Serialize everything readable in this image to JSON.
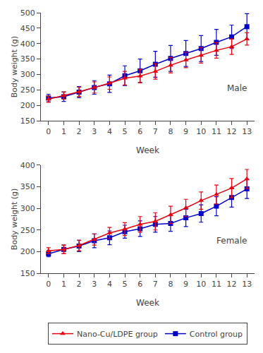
{
  "chart_data": [
    {
      "type": "line",
      "annotation": "Male",
      "xlabel": "Week",
      "ylabel": "Body weight (g)",
      "x": [
        0,
        1,
        2,
        3,
        4,
        5,
        6,
        7,
        8,
        9,
        10,
        11,
        12,
        13
      ],
      "xlim": [
        -0.5,
        13.5
      ],
      "xticks": [
        0,
        1,
        2,
        3,
        4,
        5,
        6,
        7,
        8,
        9,
        10,
        11,
        12,
        13
      ],
      "ylim": [
        150,
        500
      ],
      "yticks": [
        150,
        200,
        250,
        300,
        350,
        400,
        450,
        500
      ],
      "grid": false,
      "legend": "bottom",
      "series": [
        {
          "name": "Control group",
          "color": "#0000cc",
          "marker": "square",
          "line_style": "solid",
          "values": [
            224,
            228,
            243,
            258,
            270,
            296,
            312,
            333,
            352,
            368,
            384,
            404,
            422,
            455
          ],
          "errors": [
            12,
            15,
            18,
            22,
            28,
            32,
            38,
            42,
            42,
            42,
            42,
            42,
            38,
            42
          ]
        },
        {
          "name": "Nano-Cu/LDPE group",
          "color": "#e8000d",
          "marker": "triangle-up",
          "line_style": "solid",
          "values": [
            220,
            232,
            244,
            258,
            272,
            288,
            295,
            310,
            330,
            347,
            362,
            378,
            390,
            415
          ],
          "errors": [
            10,
            12,
            15,
            18,
            20,
            22,
            22,
            25,
            25,
            25,
            25,
            25,
            25,
            20
          ]
        }
      ]
    },
    {
      "type": "line",
      "annotation": "Female",
      "xlabel": "Week",
      "ylabel": "Body weight (g)",
      "x": [
        0,
        1,
        2,
        3,
        4,
        5,
        6,
        7,
        8,
        9,
        10,
        11,
        12,
        13
      ],
      "xlim": [
        -0.5,
        13.5
      ],
      "xticks": [
        0,
        1,
        2,
        3,
        4,
        5,
        6,
        7,
        8,
        9,
        10,
        11,
        12,
        13
      ],
      "ylim": [
        150,
        400
      ],
      "yticks": [
        150,
        200,
        250,
        300,
        350,
        400
      ],
      "grid": false,
      "legend": "bottom",
      "series": [
        {
          "name": "Control group",
          "color": "#0000cc",
          "marker": "square",
          "line_style": "solid",
          "values": [
            195,
            205,
            213,
            225,
            232,
            246,
            253,
            263,
            265,
            278,
            288,
            305,
            325,
            345
          ],
          "errors": [
            7,
            10,
            13,
            16,
            16,
            15,
            18,
            18,
            18,
            20,
            20,
            22,
            22,
            22
          ]
        },
        {
          "name": "Nano-Cu/LDPE group",
          "color": "#e8000d",
          "marker": "triangle-up",
          "line_style": "solid",
          "values": [
            202,
            205,
            214,
            228,
            243,
            252,
            263,
            270,
            285,
            301,
            318,
            332,
            347,
            368
          ],
          "errors": [
            7,
            10,
            12,
            13,
            13,
            15,
            18,
            20,
            20,
            20,
            20,
            22,
            22,
            22
          ]
        }
      ]
    }
  ]
}
